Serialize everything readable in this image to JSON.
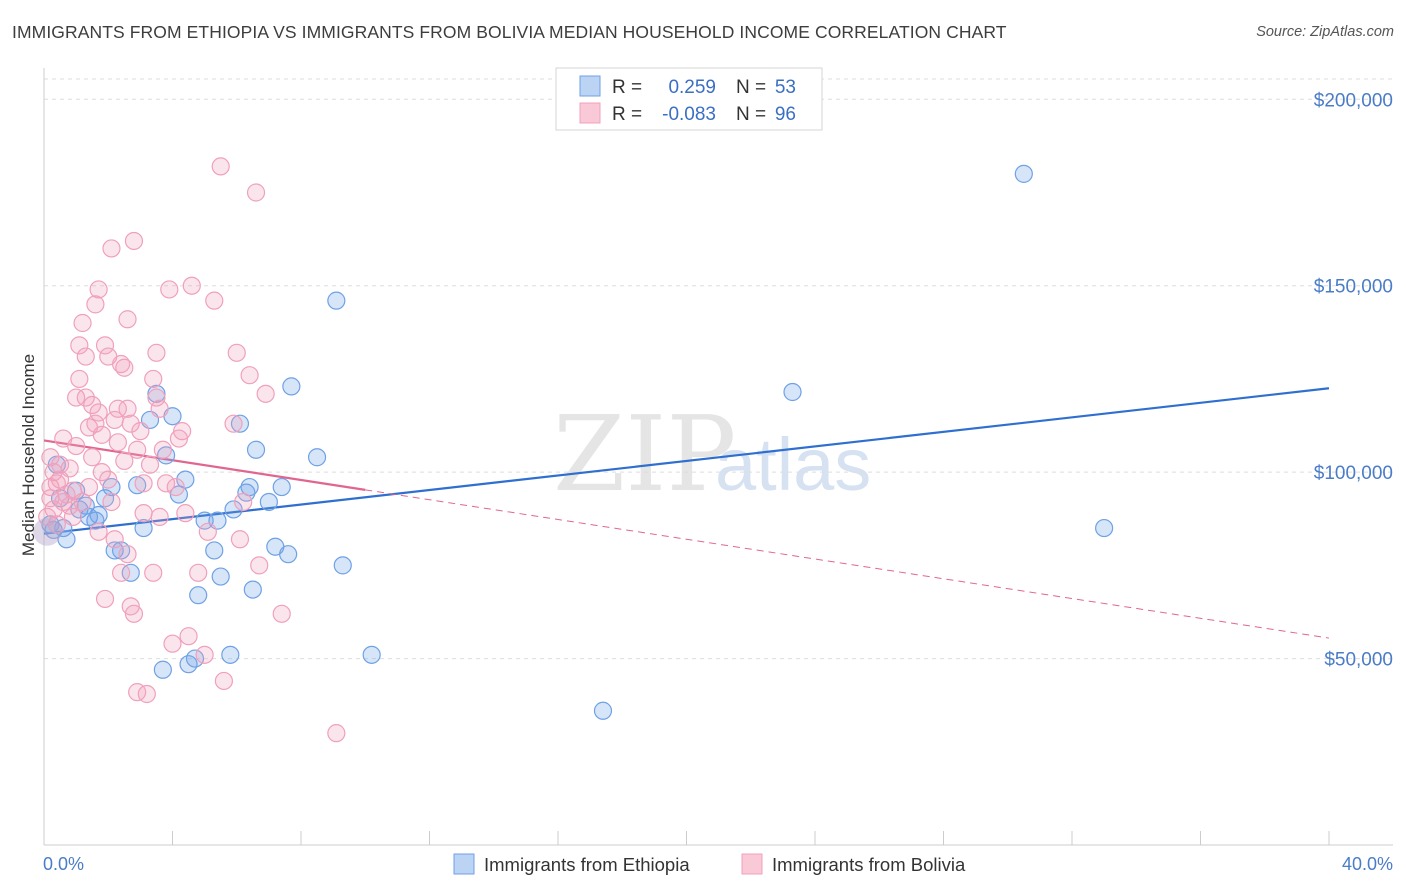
{
  "title": "IMMIGRANTS FROM ETHIOPIA VS IMMIGRANTS FROM BOLIVIA MEDIAN HOUSEHOLD INCOME CORRELATION CHART",
  "source": "Source: ZipAtlas.com",
  "watermark": {
    "zip": "ZIP",
    "atlas": "atlas"
  },
  "legend": {
    "rows": [
      {
        "r_label": "R =",
        "r_value": "0.259",
        "n_label": "N =",
        "n_value": "53"
      },
      {
        "r_label": "R =",
        "r_value": "-0.083",
        "n_label": "N =",
        "n_value": "96"
      }
    ]
  },
  "chart_data": {
    "type": "scatter",
    "title": "IMMIGRANTS FROM ETHIOPIA VS IMMIGRANTS FROM BOLIVIA MEDIAN HOUSEHOLD INCOME CORRELATION CHART",
    "xlabel": "",
    "ylabel": "Median Household Income",
    "xlim": [
      0,
      40
    ],
    "ylim": [
      0,
      210000
    ],
    "x_tick_labels": [
      "0.0%",
      "40.0%"
    ],
    "y_ticks": [
      50000,
      100000,
      150000,
      200000
    ],
    "y_tick_labels": [
      "$50,000",
      "$100,000",
      "$150,000",
      "$200,000"
    ],
    "grid": true,
    "series": [
      {
        "name": "Immigrants from Ethiopia",
        "color": "#6fa1e6",
        "line_color": "#2f6fcf",
        "r": 0.259,
        "n": 53,
        "trend": {
          "x": [
            0,
            40
          ],
          "y": [
            83500,
            122500
          ],
          "dashed_from": null
        },
        "points": [
          [
            0.4,
            102000
          ],
          [
            0.5,
            93000
          ],
          [
            0.6,
            85000
          ],
          [
            0.7,
            82000
          ],
          [
            1.0,
            95000
          ],
          [
            1.1,
            90000
          ],
          [
            1.3,
            91000
          ],
          [
            1.4,
            88000
          ],
          [
            1.6,
            87000
          ],
          [
            1.7,
            88500
          ],
          [
            1.9,
            93000
          ],
          [
            2.1,
            96000
          ],
          [
            2.2,
            79000
          ],
          [
            2.4,
            79000
          ],
          [
            2.7,
            73000
          ],
          [
            2.9,
            96500
          ],
          [
            3.1,
            85000
          ],
          [
            3.3,
            114000
          ],
          [
            3.5,
            121000
          ],
          [
            3.7,
            47000
          ],
          [
            3.8,
            104500
          ],
          [
            4.0,
            115000
          ],
          [
            4.2,
            94000
          ],
          [
            4.4,
            98000
          ],
          [
            4.5,
            48500
          ],
          [
            4.7,
            50000
          ],
          [
            4.8,
            67000
          ],
          [
            5.0,
            87000
          ],
          [
            5.3,
            79000
          ],
          [
            5.4,
            87000
          ],
          [
            5.5,
            72000
          ],
          [
            5.8,
            51000
          ],
          [
            5.9,
            90000
          ],
          [
            6.1,
            113000
          ],
          [
            6.3,
            94500
          ],
          [
            6.4,
            96000
          ],
          [
            6.5,
            68500
          ],
          [
            6.6,
            106000
          ],
          [
            7.0,
            92000
          ],
          [
            7.2,
            80000
          ],
          [
            7.4,
            96000
          ],
          [
            7.6,
            78000
          ],
          [
            7.7,
            123000
          ],
          [
            8.5,
            104000
          ],
          [
            9.1,
            146000
          ],
          [
            9.3,
            75000
          ],
          [
            10.2,
            51000
          ],
          [
            17.4,
            36000
          ],
          [
            23.3,
            121500
          ],
          [
            30.5,
            180000
          ],
          [
            33.0,
            85000
          ],
          [
            0.2,
            86000
          ],
          [
            0.3,
            84500
          ]
        ]
      },
      {
        "name": "Immigrants from Bolivia",
        "color": "#f0a0bc",
        "line_color": "#e06690",
        "r": -0.083,
        "n": 96,
        "trend": {
          "x": [
            0,
            40
          ],
          "y": [
            108500,
            55500
          ],
          "dashed_from": 10
        },
        "points": [
          [
            0.1,
            88000
          ],
          [
            0.2,
            93000
          ],
          [
            0.2,
            96000
          ],
          [
            0.3,
            100000
          ],
          [
            0.3,
            90000
          ],
          [
            0.4,
            86000
          ],
          [
            0.5,
            102000
          ],
          [
            0.5,
            98000
          ],
          [
            0.6,
            92000
          ],
          [
            0.7,
            94000
          ],
          [
            0.8,
            101000
          ],
          [
            0.8,
            91000
          ],
          [
            0.9,
            95000
          ],
          [
            1.0,
            107000
          ],
          [
            1.0,
            120000
          ],
          [
            1.1,
            125000
          ],
          [
            1.1,
            134000
          ],
          [
            1.2,
            140000
          ],
          [
            1.2,
            92000
          ],
          [
            1.3,
            131000
          ],
          [
            1.4,
            112000
          ],
          [
            1.5,
            118000
          ],
          [
            1.5,
            104000
          ],
          [
            1.6,
            145000
          ],
          [
            1.6,
            113000
          ],
          [
            1.7,
            149000
          ],
          [
            1.7,
            116000
          ],
          [
            1.8,
            110000
          ],
          [
            1.8,
            100000
          ],
          [
            1.9,
            134000
          ],
          [
            1.9,
            66000
          ],
          [
            2.0,
            131000
          ],
          [
            2.0,
            98000
          ],
          [
            2.1,
            160000
          ],
          [
            2.1,
            92000
          ],
          [
            2.2,
            114000
          ],
          [
            2.2,
            82000
          ],
          [
            2.3,
            117000
          ],
          [
            2.4,
            129000
          ],
          [
            2.4,
            73000
          ],
          [
            2.5,
            128000
          ],
          [
            2.5,
            103000
          ],
          [
            2.6,
            141000
          ],
          [
            2.6,
            117000
          ],
          [
            2.7,
            113000
          ],
          [
            2.7,
            64000
          ],
          [
            2.8,
            162000
          ],
          [
            2.8,
            62000
          ],
          [
            2.9,
            106000
          ],
          [
            2.9,
            41000
          ],
          [
            3.0,
            111000
          ],
          [
            3.1,
            89000
          ],
          [
            3.2,
            40500
          ],
          [
            3.3,
            102000
          ],
          [
            3.4,
            125000
          ],
          [
            3.4,
            73000
          ],
          [
            3.5,
            132000
          ],
          [
            3.5,
            120000
          ],
          [
            3.6,
            117000
          ],
          [
            3.7,
            106000
          ],
          [
            3.8,
            97000
          ],
          [
            3.9,
            149000
          ],
          [
            4.0,
            54000
          ],
          [
            4.1,
            96000
          ],
          [
            4.2,
            109000
          ],
          [
            4.3,
            111000
          ],
          [
            4.4,
            89000
          ],
          [
            4.5,
            56000
          ],
          [
            4.6,
            150000
          ],
          [
            4.8,
            73000
          ],
          [
            5.0,
            51000
          ],
          [
            5.1,
            84000
          ],
          [
            5.3,
            146000
          ],
          [
            5.5,
            182000
          ],
          [
            5.6,
            44000
          ],
          [
            5.9,
            113000
          ],
          [
            6.0,
            132000
          ],
          [
            6.1,
            82000
          ],
          [
            6.2,
            92000
          ],
          [
            6.4,
            126000
          ],
          [
            6.6,
            175000
          ],
          [
            6.7,
            75000
          ],
          [
            6.9,
            121000
          ],
          [
            7.4,
            62000
          ],
          [
            9.1,
            30000
          ],
          [
            0.2,
            104000
          ],
          [
            0.4,
            97000
          ],
          [
            0.6,
            109000
          ],
          [
            0.9,
            88000
          ],
          [
            1.3,
            120000
          ],
          [
            1.4,
            96000
          ],
          [
            1.7,
            84000
          ],
          [
            2.3,
            108000
          ],
          [
            2.6,
            78000
          ],
          [
            3.1,
            97000
          ],
          [
            3.6,
            88000
          ]
        ]
      }
    ]
  }
}
